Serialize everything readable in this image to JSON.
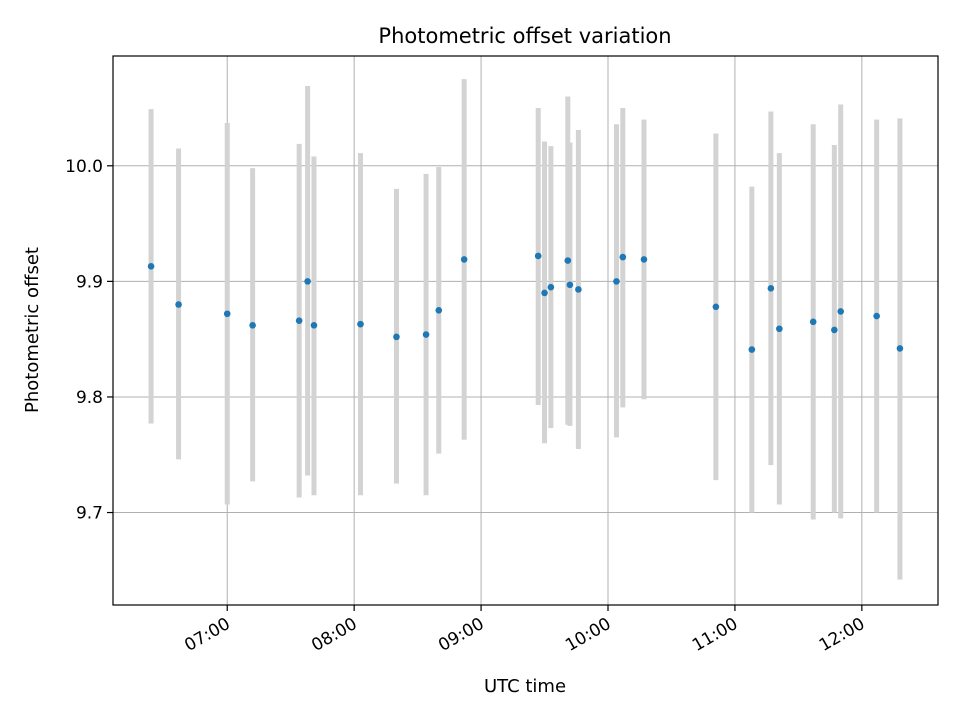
{
  "chart_data": {
    "type": "scatter",
    "title": "Photometric offset variation",
    "xlabel": "UTC time",
    "ylabel": "Photometric offset",
    "x_unit": "UTC time (HH:MM)",
    "xlim": [
      "06:06",
      "12:36"
    ],
    "ylim": [
      9.62,
      10.095
    ],
    "x_ticks": [
      "07:00",
      "08:00",
      "09:00",
      "10:00",
      "11:00",
      "12:00"
    ],
    "y_ticks": [
      9.7,
      9.8,
      9.9,
      10.0
    ],
    "y_tick_labels": [
      "9.7",
      "9.8",
      "9.9",
      "10.0"
    ],
    "grid": true,
    "legend": "none",
    "colors": {
      "marker": "#1f77b4",
      "errorbar": "#d3d3d3",
      "grid": "#b0b0b0"
    },
    "points": [
      {
        "x": "06:24",
        "y": 9.913,
        "ylo": 9.777,
        "yhi": 10.049
      },
      {
        "x": "06:37",
        "y": 9.88,
        "ylo": 9.746,
        "yhi": 10.015
      },
      {
        "x": "07:00",
        "y": 9.872,
        "ylo": 9.707,
        "yhi": 10.037
      },
      {
        "x": "07:12",
        "y": 9.862,
        "ylo": 9.727,
        "yhi": 9.998
      },
      {
        "x": "07:34",
        "y": 9.866,
        "ylo": 9.713,
        "yhi": 10.019
      },
      {
        "x": "07:38",
        "y": 9.9,
        "ylo": 9.732,
        "yhi": 10.069
      },
      {
        "x": "07:41",
        "y": 9.862,
        "ylo": 9.715,
        "yhi": 10.008
      },
      {
        "x": "08:03",
        "y": 9.863,
        "ylo": 9.715,
        "yhi": 10.011
      },
      {
        "x": "08:20",
        "y": 9.852,
        "ylo": 9.725,
        "yhi": 9.98
      },
      {
        "x": "08:34",
        "y": 9.854,
        "ylo": 9.715,
        "yhi": 9.993
      },
      {
        "x": "08:40",
        "y": 9.875,
        "ylo": 9.751,
        "yhi": 9.999
      },
      {
        "x": "08:52",
        "y": 9.919,
        "ylo": 9.763,
        "yhi": 10.075
      },
      {
        "x": "09:27",
        "y": 9.922,
        "ylo": 9.793,
        "yhi": 10.05
      },
      {
        "x": "09:30",
        "y": 9.89,
        "ylo": 9.76,
        "yhi": 10.021
      },
      {
        "x": "09:33",
        "y": 9.895,
        "ylo": 9.773,
        "yhi": 10.017
      },
      {
        "x": "09:41",
        "y": 9.918,
        "ylo": 9.776,
        "yhi": 10.06
      },
      {
        "x": "09:42",
        "y": 9.897,
        "ylo": 9.775,
        "yhi": 10.02
      },
      {
        "x": "09:46",
        "y": 9.893,
        "ylo": 9.755,
        "yhi": 10.031
      },
      {
        "x": "10:04",
        "y": 9.9,
        "ylo": 9.765,
        "yhi": 10.036
      },
      {
        "x": "10:07",
        "y": 9.921,
        "ylo": 9.791,
        "yhi": 10.05
      },
      {
        "x": "10:17",
        "y": 9.919,
        "ylo": 9.798,
        "yhi": 10.04
      },
      {
        "x": "10:51",
        "y": 9.878,
        "ylo": 9.728,
        "yhi": 10.028
      },
      {
        "x": "11:08",
        "y": 9.841,
        "ylo": 9.7,
        "yhi": 9.982
      },
      {
        "x": "11:17",
        "y": 9.894,
        "ylo": 9.741,
        "yhi": 10.047
      },
      {
        "x": "11:21",
        "y": 9.859,
        "ylo": 9.707,
        "yhi": 10.011
      },
      {
        "x": "11:37",
        "y": 9.865,
        "ylo": 9.694,
        "yhi": 10.036
      },
      {
        "x": "11:47",
        "y": 9.858,
        "ylo": 9.7,
        "yhi": 10.018
      },
      {
        "x": "11:50",
        "y": 9.874,
        "ylo": 9.695,
        "yhi": 10.053
      },
      {
        "x": "12:07",
        "y": 9.87,
        "ylo": 9.7,
        "yhi": 10.04
      },
      {
        "x": "12:18",
        "y": 9.842,
        "ylo": 9.642,
        "yhi": 10.041
      }
    ]
  }
}
